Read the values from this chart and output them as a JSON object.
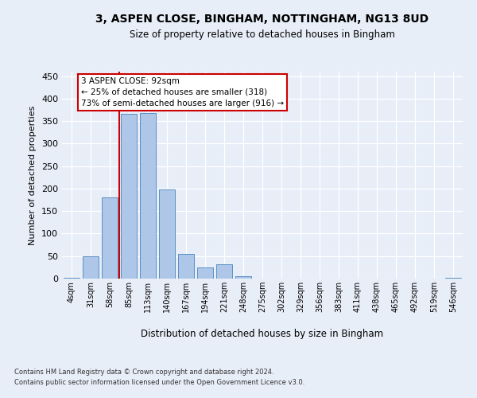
{
  "title_line1": "3, ASPEN CLOSE, BINGHAM, NOTTINGHAM, NG13 8UD",
  "title_line2": "Size of property relative to detached houses in Bingham",
  "xlabel": "Distribution of detached houses by size in Bingham",
  "ylabel": "Number of detached properties",
  "bar_labels": [
    "4sqm",
    "31sqm",
    "58sqm",
    "85sqm",
    "113sqm",
    "140sqm",
    "167sqm",
    "194sqm",
    "221sqm",
    "248sqm",
    "275sqm",
    "302sqm",
    "329sqm",
    "356sqm",
    "383sqm",
    "411sqm",
    "438sqm",
    "465sqm",
    "492sqm",
    "519sqm",
    "546sqm"
  ],
  "bar_values": [
    2,
    49,
    181,
    366,
    368,
    199,
    54,
    25,
    31,
    5,
    0,
    0,
    0,
    0,
    0,
    0,
    0,
    0,
    0,
    0,
    1
  ],
  "bar_color": "#aec6e8",
  "bar_edge_color": "#5a8fc2",
  "vline_color": "#cc0000",
  "vline_x": 2.5,
  "ylim": [
    0,
    460
  ],
  "yticks": [
    0,
    50,
    100,
    150,
    200,
    250,
    300,
    350,
    400,
    450
  ],
  "annotation_line1": "3 ASPEN CLOSE: 92sqm",
  "annotation_line2": "← 25% of detached houses are smaller (318)",
  "annotation_line3": "73% of semi-detached houses are larger (916) →",
  "ann_box_edge_color": "#cc0000",
  "footnote_line1": "Contains HM Land Registry data © Crown copyright and database right 2024.",
  "footnote_line2": "Contains public sector information licensed under the Open Government Licence v3.0.",
  "bg_color": "#e8eef8"
}
